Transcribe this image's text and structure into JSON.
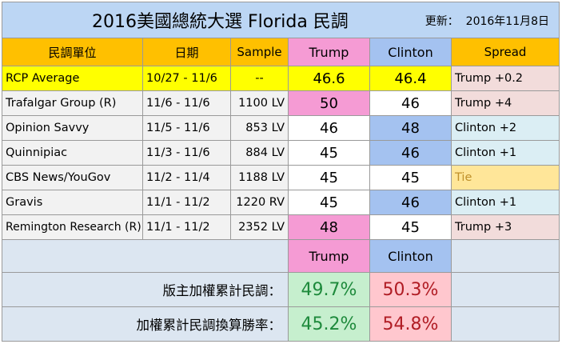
{
  "title": "2016美國總統大選  Florida 民調",
  "updated_label": "更新：",
  "updated_date": "2016年11月8日",
  "headers": {
    "pollster": "民調單位",
    "date": "日期",
    "sample": "Sample",
    "trump": "Trump",
    "clinton": "Clinton",
    "spread": "Spread"
  },
  "polls": [
    {
      "pollster": "RCP Average",
      "date": "10/27 - 11/6",
      "sample": "--",
      "trump": "46.6",
      "clinton": "46.4",
      "spread": "Trump +0.2"
    },
    {
      "pollster": "Trafalgar Group (R)",
      "date": "11/6 - 11/6",
      "sample": "1100 LV",
      "trump": "50",
      "clinton": "46",
      "spread": "Trump +4"
    },
    {
      "pollster": "Opinion Savvy",
      "date": "11/5 - 11/6",
      "sample": "853 LV",
      "trump": "46",
      "clinton": "48",
      "spread": "Clinton +2"
    },
    {
      "pollster": "Quinnipiac",
      "date": "11/3 - 11/6",
      "sample": "884 LV",
      "trump": "45",
      "clinton": "46",
      "spread": "Clinton +1"
    },
    {
      "pollster": "CBS News/YouGov",
      "date": "11/2 - 11/4",
      "sample": "1188 LV",
      "trump": "45",
      "clinton": "45",
      "spread": "Tie"
    },
    {
      "pollster": "Gravis",
      "date": "11/1 - 11/2",
      "sample": "1220 RV",
      "trump": "45",
      "clinton": "46",
      "spread": "Clinton +1"
    },
    {
      "pollster": "Remington Research (R)",
      "date": "11/1 - 11/2",
      "sample": "2352 LV",
      "trump": "48",
      "clinton": "45",
      "spread": "Trump +3"
    }
  ],
  "summary": {
    "trump_label": "Trump",
    "clinton_label": "Clinton",
    "weighted_label": "版主加權累計民調：",
    "weighted_trump": "49.7%",
    "weighted_clinton": "50.3%",
    "win_label": "加權累計民調換算勝率：",
    "win_trump": "45.2%",
    "win_clinton": "54.8%"
  },
  "colors": {
    "title_bg": "#bcd6f4",
    "header_orange": "#ffc000",
    "trump_pink": "#f59bd4",
    "clinton_blue": "#a4c2f0",
    "average_yellow": "#ffff00",
    "cell_gray": "#f2f2f2",
    "spread_trump": "#f2dcdb",
    "spread_clinton": "#dbeef4",
    "spread_tie": "#ffe699",
    "tie_text": "#c0902a",
    "summary_bg": "#dce6f1",
    "trump_green": "#c6efce",
    "green_text": "#1e8a3c",
    "clinton_pink": "#ffc7ce",
    "red_text": "#b01c24"
  }
}
